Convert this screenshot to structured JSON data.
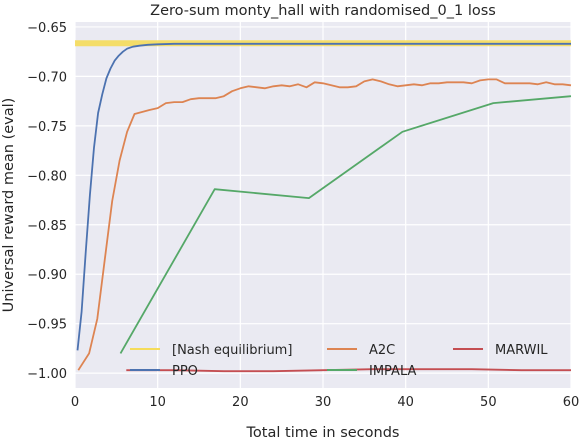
{
  "chart_data": {
    "type": "line",
    "title": "Zero-sum monty_hall with randomised_0_1 loss",
    "xlabel": "Total time in seconds",
    "ylabel": "Universal reward mean (eval)",
    "xlim": [
      0,
      60
    ],
    "ylim": [
      -1.015,
      -0.645
    ],
    "x_ticks": [
      "0",
      "10",
      "20",
      "30",
      "40",
      "50",
      "60"
    ],
    "y_ticks": [
      "-0.65",
      "-0.70",
      "-0.75",
      "-0.80",
      "-0.85",
      "-0.90",
      "-0.95",
      "-1.00"
    ],
    "grid": true,
    "legend_placement": "lower-center",
    "series": [
      {
        "name": "[Nash equilibrium]",
        "color": "#f5dc5a",
        "style": "band",
        "x": [
          0,
          60
        ],
        "y": [
          -0.6665,
          -0.6665
        ]
      },
      {
        "name": "PPO",
        "color": "#4c72b0",
        "x": [
          0.3,
          0.8,
          1.3,
          1.8,
          2.3,
          2.8,
          3.3,
          3.8,
          4.3,
          4.8,
          5.3,
          5.8,
          6.3,
          7.0,
          7.8,
          8.8,
          10.0,
          12.0,
          15.0,
          20.0,
          30.0,
          40.0,
          50.0,
          60.0
        ],
        "y": [
          -0.977,
          -0.938,
          -0.878,
          -0.82,
          -0.772,
          -0.737,
          -0.718,
          -0.702,
          -0.692,
          -0.684,
          -0.679,
          -0.675,
          -0.672,
          -0.67,
          -0.669,
          -0.668,
          -0.6675,
          -0.667,
          -0.667,
          -0.667,
          -0.667,
          -0.667,
          -0.667,
          -0.667
        ]
      },
      {
        "name": "A2C",
        "color": "#dd8452",
        "x": [
          0.4,
          1.7,
          2.7,
          3.6,
          4.5,
          5.4,
          6.3,
          7.2,
          8.1,
          9.0,
          10.0,
          11.0,
          12.0,
          13.0,
          14.0,
          15.0,
          16.0,
          17.0,
          18.0,
          19.0,
          20.0,
          21.0,
          22.0,
          23.0,
          24.0,
          25.0,
          26.0,
          27.0,
          28.0,
          29.0,
          30.0,
          31.0,
          32.0,
          33.0,
          34.0,
          35.0,
          36.0,
          37.0,
          38.0,
          39.0,
          40.0,
          41.0,
          42.0,
          43.0,
          44.0,
          45.0,
          46.0,
          47.0,
          48.0,
          49.0,
          50.0,
          51.0,
          52.0,
          53.0,
          54.0,
          55.0,
          56.0,
          57.0,
          58.0,
          59.0,
          60.0
        ],
        "y": [
          -0.997,
          -0.98,
          -0.945,
          -0.885,
          -0.826,
          -0.785,
          -0.756,
          -0.738,
          -0.736,
          -0.734,
          -0.732,
          -0.727,
          -0.726,
          -0.726,
          -0.723,
          -0.722,
          -0.722,
          -0.722,
          -0.72,
          -0.715,
          -0.712,
          -0.71,
          -0.711,
          -0.712,
          -0.71,
          -0.709,
          -0.71,
          -0.708,
          -0.711,
          -0.706,
          -0.707,
          -0.709,
          -0.711,
          -0.711,
          -0.71,
          -0.705,
          -0.703,
          -0.705,
          -0.708,
          -0.71,
          -0.709,
          -0.708,
          -0.709,
          -0.707,
          -0.707,
          -0.706,
          -0.706,
          -0.706,
          -0.707,
          -0.704,
          -0.703,
          -0.703,
          -0.707,
          -0.707,
          -0.707,
          -0.707,
          -0.708,
          -0.706,
          -0.708,
          -0.708,
          -0.709
        ]
      },
      {
        "name": "IMPALA",
        "color": "#55a868",
        "x": [
          5.5,
          16.9,
          28.3,
          39.6,
          50.6,
          60.0
        ],
        "y": [
          -0.98,
          -0.814,
          -0.823,
          -0.756,
          -0.727,
          -0.72
        ]
      },
      {
        "name": "MARWIL",
        "color": "#c44e52",
        "x": [
          6.2,
          12.0,
          18.0,
          24.0,
          30.0,
          36.0,
          42.0,
          48.0,
          54.0,
          60.0
        ],
        "y": [
          -0.997,
          -0.997,
          -0.998,
          -0.998,
          -0.997,
          -0.996,
          -0.996,
          -0.996,
          -0.997,
          -0.997
        ]
      }
    ]
  }
}
